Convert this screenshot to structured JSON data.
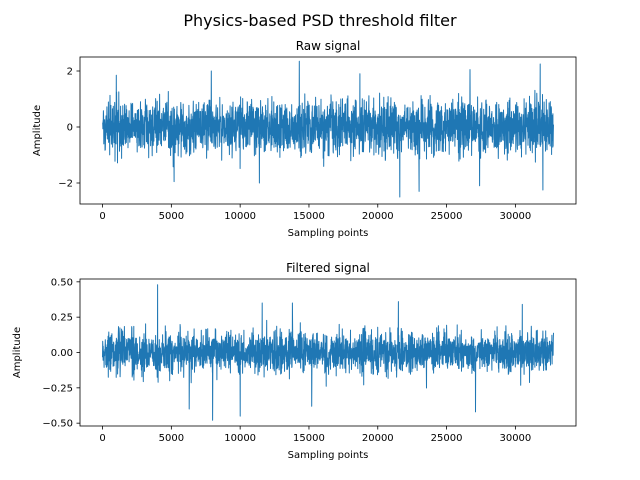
{
  "figure": {
    "title": "Physics-based PSD threshold filter"
  },
  "chart_data": [
    {
      "type": "line",
      "title": "Raw signal",
      "xlabel": "Sampling points",
      "ylabel": "Amplitude",
      "xlim": [
        -1638,
        34405
      ],
      "ylim": [
        -2.75,
        2.5
      ],
      "x_ticks": [
        0,
        5000,
        10000,
        15000,
        20000,
        25000,
        30000
      ],
      "x_tick_labels": [
        "0",
        "5000",
        "10000",
        "15000",
        "20000",
        "25000",
        "30000"
      ],
      "y_ticks": [
        -2,
        0,
        2
      ],
      "y_tick_labels": [
        "−2",
        "0",
        "2"
      ],
      "grid": false,
      "series_color": "#1f77b4",
      "n_samples": 32768,
      "amplitude_band": [
        -1.2,
        1.2
      ],
      "peaks": [
        {
          "x": 14300,
          "y": 2.35
        },
        {
          "x": 31800,
          "y": 2.25
        },
        {
          "x": 21600,
          "y": -2.5
        },
        {
          "x": 23000,
          "y": -2.3
        },
        {
          "x": 32000,
          "y": -2.25
        },
        {
          "x": 1000,
          "y": 1.85
        },
        {
          "x": 5200,
          "y": -1.95
        },
        {
          "x": 7900,
          "y": 2.0
        },
        {
          "x": 11400,
          "y": -2.0
        },
        {
          "x": 18700,
          "y": 1.9
        },
        {
          "x": 26700,
          "y": 2.05
        },
        {
          "x": 27400,
          "y": -2.1
        }
      ]
    },
    {
      "type": "line",
      "title": "Filtered signal",
      "xlabel": "Sampling points",
      "ylabel": "Amplitude",
      "xlim": [
        -1638,
        34405
      ],
      "ylim": [
        -0.52,
        0.52
      ],
      "x_ticks": [
        0,
        5000,
        10000,
        15000,
        20000,
        25000,
        30000
      ],
      "x_tick_labels": [
        "0",
        "5000",
        "10000",
        "15000",
        "20000",
        "25000",
        "30000"
      ],
      "y_ticks": [
        -0.5,
        -0.25,
        0,
        0.25,
        0.5
      ],
      "y_tick_labels": [
        "−0.50",
        "−0.25",
        "0.00",
        "0.25",
        "0.50"
      ],
      "grid": false,
      "series_color": "#1f77b4",
      "n_samples": 32768,
      "amplitude_band": [
        -0.2,
        0.22
      ],
      "peaks": [
        {
          "x": 4000,
          "y": 0.48
        },
        {
          "x": 8000,
          "y": -0.48
        },
        {
          "x": 10000,
          "y": -0.45
        },
        {
          "x": 13800,
          "y": 0.35
        },
        {
          "x": 21500,
          "y": 0.36
        },
        {
          "x": 27100,
          "y": -0.42
        },
        {
          "x": 6300,
          "y": -0.4
        },
        {
          "x": 11600,
          "y": 0.35
        },
        {
          "x": 30500,
          "y": 0.34
        },
        {
          "x": 15200,
          "y": -0.38
        }
      ]
    }
  ]
}
